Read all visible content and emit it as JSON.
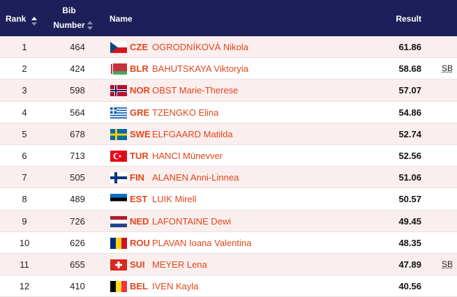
{
  "header": {
    "rank": "Rank",
    "bib": [
      "Bib",
      "Number"
    ],
    "name": "Name",
    "result": "Result"
  },
  "table": {
    "rows": [
      {
        "rank": "1",
        "bib": "464",
        "country": "CZE",
        "name": "OGRODNÍKOVÁ Nikola",
        "result": "61.86"
      },
      {
        "rank": "2",
        "bib": "424",
        "country": "BLR",
        "name": "BAHUTSKAYA Viktoryia",
        "result": "58.68",
        "note": "SB"
      },
      {
        "rank": "3",
        "bib": "598",
        "country": "NOR",
        "name": "OBST Marie-Therese",
        "result": "57.07"
      },
      {
        "rank": "4",
        "bib": "564",
        "country": "GRE",
        "name": "TZENGKO Elina",
        "result": "54.86"
      },
      {
        "rank": "5",
        "bib": "678",
        "country": "SWE",
        "name": "ELFGAARD Matilda",
        "result": "52.74"
      },
      {
        "rank": "6",
        "bib": "713",
        "country": "TUR",
        "name": "HANCI Münevver",
        "result": "52.56"
      },
      {
        "rank": "7",
        "bib": "505",
        "country": "FIN",
        "name": "ALANEN Anni-Linnea",
        "result": "51.06"
      },
      {
        "rank": "8",
        "bib": "489",
        "country": "EST",
        "name": "LUIK Mirell",
        "result": "50.57"
      },
      {
        "rank": "9",
        "bib": "726",
        "country": "NED",
        "name": "LAFONTAINE Dewi",
        "result": "49.45"
      },
      {
        "rank": "10",
        "bib": "626",
        "country": "ROU",
        "name": "PLAVAN Ioana Valentina",
        "result": "48.35"
      },
      {
        "rank": "11",
        "bib": "655",
        "country": "SUI",
        "name": "MEYER Lena",
        "result": "47.89",
        "note": "SB"
      },
      {
        "rank": "12",
        "bib": "410",
        "country": "BEL",
        "name": "IVEN Kayla",
        "result": "40.56"
      }
    ]
  }
}
